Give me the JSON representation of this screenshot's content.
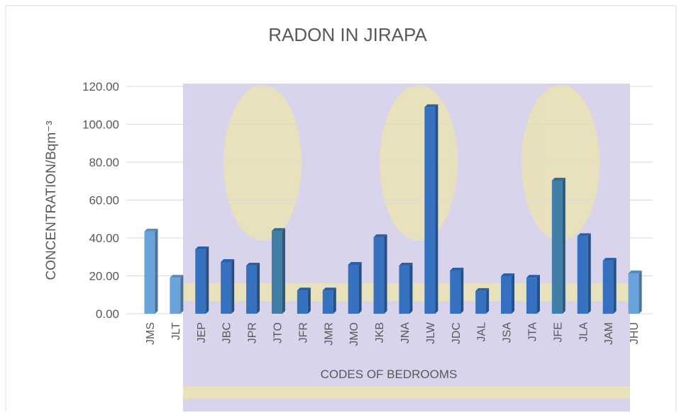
{
  "chart_data": {
    "type": "bar",
    "title": "RADON IN JIRAPA",
    "x_label": "CODES OF BEDROOMS",
    "y_label": "CONCENTRATION/Bqm⁻³",
    "categories": [
      "JMS",
      "JLT",
      "JEP",
      "JBC",
      "JPR",
      "JTO",
      "JFR",
      "JMR",
      "JMO",
      "JKB",
      "JNA",
      "JLW",
      "JDC",
      "JAL",
      "JSA",
      "JTA",
      "JFE",
      "JLA",
      "JAM",
      "JHU"
    ],
    "values": [
      43.4,
      19,
      34,
      27.3,
      25.4,
      43.7,
      12.3,
      12.3,
      25.8,
      40.4,
      25.4,
      109,
      22.8,
      12,
      19.8,
      19,
      70.3,
      41,
      28,
      21.3
    ],
    "colors": [
      "#6aa3dc",
      "#6aa3dc",
      "#3671c0",
      "#3671c0",
      "#3671c0",
      "#417fa8",
      "#3671c0",
      "#3671c0",
      "#3671c0",
      "#3671c0",
      "#3671c0",
      "#3671c0",
      "#3671c0",
      "#3671c0",
      "#3671c0",
      "#3671c0",
      "#417fa8",
      "#3671c0",
      "#3671c0",
      "#6aa3dc"
    ],
    "ylim": [
      0,
      120
    ],
    "yticks": [
      {
        "value": 0,
        "label": "0.00"
      },
      {
        "value": 20,
        "label": "20.00"
      },
      {
        "value": 40,
        "label": "40.00"
      },
      {
        "value": 60,
        "label": "60.00"
      },
      {
        "value": 80,
        "label": "80.00"
      },
      {
        "value": 100,
        "label": "100.00"
      },
      {
        "value": 120,
        "label": "120.00"
      }
    ],
    "grid": true
  }
}
